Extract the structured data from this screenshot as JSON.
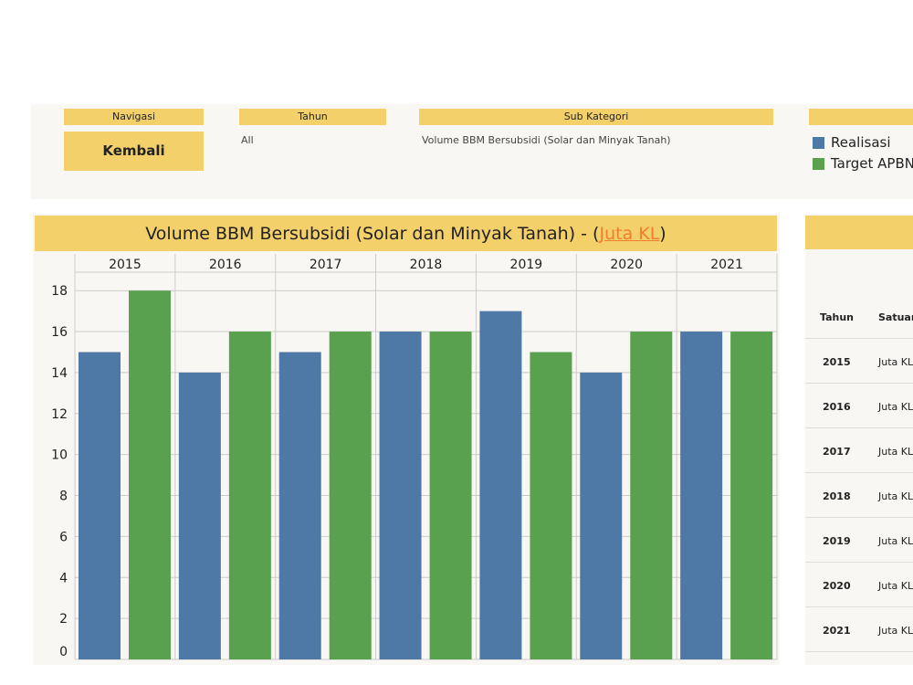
{
  "filters": {
    "navigasi": "Navigasi",
    "kembali": "Kembali",
    "tahun": "Tahun",
    "tahun_value": "All",
    "sub_kategori": "Sub Kategori",
    "sub_kategori_value": "Volume BBM Bersubsidi (Solar dan Minyak Tanah)"
  },
  "legend": [
    {
      "label": "Realisasi",
      "color": "#4e79a7"
    },
    {
      "label": "Target APBN",
      "color": "#59a14f"
    }
  ],
  "chart_data": {
    "type": "bar",
    "title": "Volume BBM Bersubsidi (Solar dan Minyak Tanah) - (",
    "title_link": "Juta KL",
    "title_end": ")",
    "categories": [
      "2015",
      "2016",
      "2017",
      "2018",
      "2019",
      "2020",
      "2021"
    ],
    "series": [
      {
        "name": "Realisasi",
        "color": "#4e79a7",
        "values": [
          15,
          14,
          15,
          16,
          17,
          14,
          16
        ]
      },
      {
        "name": "Target APBN",
        "color": "#59a14f",
        "values": [
          18,
          16,
          16,
          16,
          15,
          16,
          16
        ]
      }
    ],
    "yticks": [
      0,
      2,
      4,
      6,
      8,
      10,
      12,
      14,
      16,
      18
    ],
    "ylim": [
      0,
      18.9
    ],
    "grid": true
  },
  "table": {
    "headers": [
      "Tahun",
      "Satuan"
    ],
    "rows": [
      [
        "2015",
        "Juta KL"
      ],
      [
        "2016",
        "Juta KL"
      ],
      [
        "2017",
        "Juta KL"
      ],
      [
        "2018",
        "Juta KL"
      ],
      [
        "2019",
        "Juta KL"
      ],
      [
        "2020",
        "Juta KL"
      ],
      [
        "2021",
        "Juta KL"
      ]
    ]
  }
}
